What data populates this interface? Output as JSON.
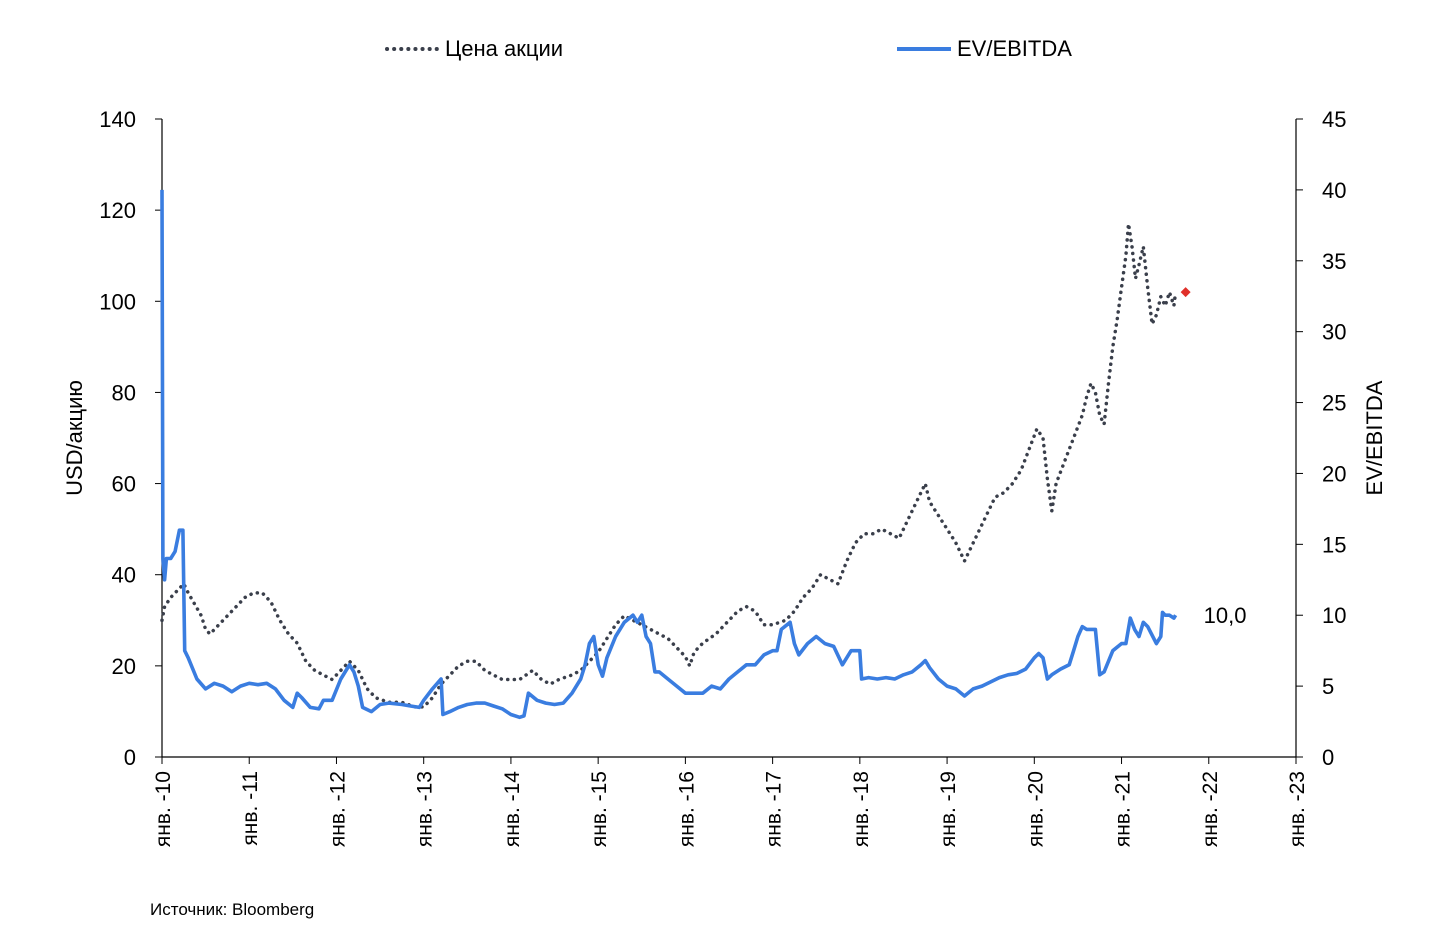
{
  "legend": {
    "price": "Цена акции",
    "ev": "EV/EBITDA"
  },
  "source": "Источник: Bloomberg",
  "last_value_label": "10,0",
  "colors": {
    "price": "#3a3f4b",
    "ev": "#3a7de0",
    "marker": "#e0302a"
  },
  "chart_data": {
    "type": "line",
    "y_left": {
      "label": "USD/акцию",
      "range": [
        0,
        140
      ],
      "ticks": [
        0,
        20,
        40,
        60,
        80,
        100,
        120,
        140
      ]
    },
    "y_right": {
      "label": "EV/EBITDA",
      "range": [
        0,
        45
      ],
      "ticks": [
        0,
        5,
        10,
        15,
        20,
        25,
        30,
        35,
        40,
        45
      ]
    },
    "x": {
      "range": [
        2010,
        2023
      ],
      "ticks": [
        {
          "v": 2010,
          "label": "янв. -10"
        },
        {
          "v": 2011,
          "label": "янв. -11"
        },
        {
          "v": 2012,
          "label": "янв. -12"
        },
        {
          "v": 2013,
          "label": "янв. -13"
        },
        {
          "v": 2014,
          "label": "янв. -14"
        },
        {
          "v": 2015,
          "label": "янв. -15"
        },
        {
          "v": 2016,
          "label": "янв. -16"
        },
        {
          "v": 2017,
          "label": "янв. -17"
        },
        {
          "v": 2018,
          "label": "янв. -18"
        },
        {
          "v": 2019,
          "label": "янв. -19"
        },
        {
          "v": 2020,
          "label": "янв. -20"
        },
        {
          "v": 2021,
          "label": "янв. -21"
        },
        {
          "v": 2022,
          "label": "янв. -22"
        },
        {
          "v": 2023,
          "label": "янв. -23"
        }
      ]
    },
    "series": [
      {
        "name": "Цена акции",
        "axis": "left",
        "style": "dotted",
        "points": [
          [
            2010.0,
            30
          ],
          [
            2010.03,
            33
          ],
          [
            2010.1,
            35
          ],
          [
            2010.2,
            37
          ],
          [
            2010.25,
            38
          ],
          [
            2010.3,
            36
          ],
          [
            2010.45,
            31
          ],
          [
            2010.5,
            28
          ],
          [
            2010.55,
            27
          ],
          [
            2010.7,
            30
          ],
          [
            2010.8,
            32
          ],
          [
            2010.95,
            35
          ],
          [
            2011.05,
            36
          ],
          [
            2011.15,
            36
          ],
          [
            2011.25,
            34
          ],
          [
            2011.35,
            30
          ],
          [
            2011.45,
            27
          ],
          [
            2011.55,
            25
          ],
          [
            2011.65,
            21
          ],
          [
            2011.75,
            19
          ],
          [
            2011.85,
            18
          ],
          [
            2011.95,
            17
          ],
          [
            2012.05,
            19
          ],
          [
            2012.15,
            21
          ],
          [
            2012.25,
            19
          ],
          [
            2012.35,
            15
          ],
          [
            2012.45,
            13
          ],
          [
            2012.6,
            12
          ],
          [
            2012.75,
            12
          ],
          [
            2012.9,
            11
          ],
          [
            2013.0,
            11
          ],
          [
            2013.1,
            13
          ],
          [
            2013.2,
            16
          ],
          [
            2013.3,
            18
          ],
          [
            2013.4,
            20
          ],
          [
            2013.5,
            21
          ],
          [
            2013.6,
            21
          ],
          [
            2013.7,
            19
          ],
          [
            2013.8,
            18
          ],
          [
            2013.9,
            17
          ],
          [
            2014.0,
            17
          ],
          [
            2014.1,
            17
          ],
          [
            2014.25,
            19
          ],
          [
            2014.35,
            17
          ],
          [
            2014.45,
            16
          ],
          [
            2014.55,
            17
          ],
          [
            2014.7,
            18
          ],
          [
            2014.8,
            19
          ],
          [
            2014.9,
            21
          ],
          [
            2015.0,
            23
          ],
          [
            2015.1,
            26
          ],
          [
            2015.2,
            29
          ],
          [
            2015.3,
            31
          ],
          [
            2015.4,
            30
          ],
          [
            2015.5,
            29
          ],
          [
            2015.6,
            28
          ],
          [
            2015.7,
            27
          ],
          [
            2015.8,
            26
          ],
          [
            2015.9,
            24
          ],
          [
            2016.0,
            22
          ],
          [
            2016.05,
            20
          ],
          [
            2016.1,
            23
          ],
          [
            2016.2,
            25
          ],
          [
            2016.35,
            27
          ],
          [
            2016.5,
            30
          ],
          [
            2016.6,
            32
          ],
          [
            2016.7,
            33
          ],
          [
            2016.8,
            32
          ],
          [
            2016.9,
            29
          ],
          [
            2017.0,
            29
          ],
          [
            2017.15,
            30
          ],
          [
            2017.25,
            32
          ],
          [
            2017.35,
            35
          ],
          [
            2017.45,
            37
          ],
          [
            2017.55,
            40
          ],
          [
            2017.65,
            39
          ],
          [
            2017.75,
            38
          ],
          [
            2017.85,
            43
          ],
          [
            2017.95,
            47
          ],
          [
            2018.05,
            49
          ],
          [
            2018.15,
            49
          ],
          [
            2018.25,
            50
          ],
          [
            2018.35,
            49
          ],
          [
            2018.45,
            48
          ],
          [
            2018.55,
            52
          ],
          [
            2018.65,
            56
          ],
          [
            2018.75,
            60
          ],
          [
            2018.8,
            56
          ],
          [
            2018.9,
            53
          ],
          [
            2019.0,
            50
          ],
          [
            2019.1,
            47
          ],
          [
            2019.2,
            43
          ],
          [
            2019.25,
            45
          ],
          [
            2019.35,
            49
          ],
          [
            2019.45,
            53
          ],
          [
            2019.55,
            57
          ],
          [
            2019.65,
            58
          ],
          [
            2019.75,
            60
          ],
          [
            2019.85,
            63
          ],
          [
            2019.95,
            68
          ],
          [
            2020.03,
            72
          ],
          [
            2020.1,
            70
          ],
          [
            2020.15,
            61
          ],
          [
            2020.2,
            54
          ],
          [
            2020.25,
            60
          ],
          [
            2020.35,
            65
          ],
          [
            2020.45,
            70
          ],
          [
            2020.55,
            75
          ],
          [
            2020.6,
            79
          ],
          [
            2020.65,
            82
          ],
          [
            2020.7,
            80
          ],
          [
            2020.75,
            75
          ],
          [
            2020.8,
            73
          ],
          [
            2020.85,
            82
          ],
          [
            2020.9,
            90
          ],
          [
            2020.95,
            96
          ],
          [
            2021.0,
            103
          ],
          [
            2021.05,
            110
          ],
          [
            2021.08,
            117
          ],
          [
            2021.12,
            112
          ],
          [
            2021.16,
            105
          ],
          [
            2021.2,
            108
          ],
          [
            2021.25,
            112
          ],
          [
            2021.3,
            103
          ],
          [
            2021.35,
            95
          ],
          [
            2021.4,
            97
          ],
          [
            2021.45,
            101
          ],
          [
            2021.5,
            99
          ],
          [
            2021.55,
            102
          ],
          [
            2021.6,
            99
          ],
          [
            2021.62,
            102
          ]
        ]
      },
      {
        "name": "EV/EBITDA",
        "axis": "right",
        "style": "solid",
        "points": [
          [
            2010.0,
            40
          ],
          [
            2010.01,
            14
          ],
          [
            2010.03,
            12.5
          ],
          [
            2010.05,
            14
          ],
          [
            2010.1,
            14
          ],
          [
            2010.15,
            14.5
          ],
          [
            2010.2,
            16
          ],
          [
            2010.24,
            16
          ],
          [
            2010.26,
            7.5
          ],
          [
            2010.3,
            7
          ],
          [
            2010.4,
            5.5
          ],
          [
            2010.5,
            4.8
          ],
          [
            2010.6,
            5.2
          ],
          [
            2010.7,
            5
          ],
          [
            2010.8,
            4.6
          ],
          [
            2010.9,
            5
          ],
          [
            2011.0,
            5.2
          ],
          [
            2011.1,
            5.1
          ],
          [
            2011.2,
            5.2
          ],
          [
            2011.3,
            4.8
          ],
          [
            2011.4,
            4
          ],
          [
            2011.5,
            3.5
          ],
          [
            2011.55,
            4.5
          ],
          [
            2011.6,
            4.2
          ],
          [
            2011.7,
            3.5
          ],
          [
            2011.8,
            3.4
          ],
          [
            2011.85,
            4
          ],
          [
            2011.95,
            4
          ],
          [
            2012.05,
            5.5
          ],
          [
            2012.15,
            6.5
          ],
          [
            2012.2,
            6
          ],
          [
            2012.25,
            5
          ],
          [
            2012.3,
            3.5
          ],
          [
            2012.4,
            3.2
          ],
          [
            2012.5,
            3.7
          ],
          [
            2012.6,
            3.8
          ],
          [
            2012.75,
            3.7
          ],
          [
            2012.85,
            3.6
          ],
          [
            2012.95,
            3.5
          ],
          [
            2013.0,
            4
          ],
          [
            2013.1,
            4.8
          ],
          [
            2013.2,
            5.5
          ],
          [
            2013.22,
            3
          ],
          [
            2013.3,
            3.2
          ],
          [
            2013.4,
            3.5
          ],
          [
            2013.5,
            3.7
          ],
          [
            2013.6,
            3.8
          ],
          [
            2013.7,
            3.8
          ],
          [
            2013.8,
            3.6
          ],
          [
            2013.9,
            3.4
          ],
          [
            2014.0,
            3
          ],
          [
            2014.1,
            2.8
          ],
          [
            2014.15,
            2.9
          ],
          [
            2014.2,
            4.5
          ],
          [
            2014.3,
            4
          ],
          [
            2014.4,
            3.8
          ],
          [
            2014.5,
            3.7
          ],
          [
            2014.6,
            3.8
          ],
          [
            2014.7,
            4.5
          ],
          [
            2014.8,
            5.5
          ],
          [
            2014.85,
            6.5
          ],
          [
            2014.9,
            8
          ],
          [
            2014.95,
            8.5
          ],
          [
            2015.0,
            6.5
          ],
          [
            2015.05,
            5.7
          ],
          [
            2015.1,
            7
          ],
          [
            2015.2,
            8.5
          ],
          [
            2015.3,
            9.5
          ],
          [
            2015.4,
            10
          ],
          [
            2015.45,
            9.5
          ],
          [
            2015.5,
            10
          ],
          [
            2015.55,
            8.5
          ],
          [
            2015.6,
            8
          ],
          [
            2015.65,
            6
          ],
          [
            2015.7,
            6
          ],
          [
            2015.8,
            5.5
          ],
          [
            2015.9,
            5
          ],
          [
            2016.0,
            4.5
          ],
          [
            2016.1,
            4.5
          ],
          [
            2016.2,
            4.5
          ],
          [
            2016.3,
            5
          ],
          [
            2016.4,
            4.8
          ],
          [
            2016.5,
            5.5
          ],
          [
            2016.6,
            6
          ],
          [
            2016.7,
            6.5
          ],
          [
            2016.8,
            6.5
          ],
          [
            2016.9,
            7.2
          ],
          [
            2017.0,
            7.5
          ],
          [
            2017.05,
            7.5
          ],
          [
            2017.1,
            9
          ],
          [
            2017.2,
            9.5
          ],
          [
            2017.25,
            8
          ],
          [
            2017.3,
            7.2
          ],
          [
            2017.4,
            8
          ],
          [
            2017.5,
            8.5
          ],
          [
            2017.6,
            8
          ],
          [
            2017.7,
            7.8
          ],
          [
            2017.8,
            6.5
          ],
          [
            2017.9,
            7.5
          ],
          [
            2018.0,
            7.5
          ],
          [
            2018.02,
            5.5
          ],
          [
            2018.1,
            5.6
          ],
          [
            2018.2,
            5.5
          ],
          [
            2018.3,
            5.6
          ],
          [
            2018.4,
            5.5
          ],
          [
            2018.5,
            5.8
          ],
          [
            2018.6,
            6
          ],
          [
            2018.7,
            6.5
          ],
          [
            2018.75,
            6.8
          ],
          [
            2018.8,
            6.3
          ],
          [
            2018.9,
            5.5
          ],
          [
            2019.0,
            5
          ],
          [
            2019.1,
            4.8
          ],
          [
            2019.2,
            4.3
          ],
          [
            2019.3,
            4.8
          ],
          [
            2019.4,
            5
          ],
          [
            2019.5,
            5.3
          ],
          [
            2019.6,
            5.6
          ],
          [
            2019.7,
            5.8
          ],
          [
            2019.8,
            5.9
          ],
          [
            2019.9,
            6.2
          ],
          [
            2020.0,
            7
          ],
          [
            2020.05,
            7.3
          ],
          [
            2020.1,
            7
          ],
          [
            2020.15,
            5.5
          ],
          [
            2020.2,
            5.8
          ],
          [
            2020.3,
            6.2
          ],
          [
            2020.4,
            6.5
          ],
          [
            2020.45,
            7.5
          ],
          [
            2020.5,
            8.5
          ],
          [
            2020.55,
            9.2
          ],
          [
            2020.6,
            9
          ],
          [
            2020.7,
            9
          ],
          [
            2020.75,
            5.8
          ],
          [
            2020.8,
            6
          ],
          [
            2020.9,
            7.5
          ],
          [
            2021.0,
            8
          ],
          [
            2021.05,
            8
          ],
          [
            2021.1,
            9.8
          ],
          [
            2021.15,
            9
          ],
          [
            2021.2,
            8.5
          ],
          [
            2021.25,
            9.5
          ],
          [
            2021.3,
            9.2
          ],
          [
            2021.4,
            8
          ],
          [
            2021.45,
            8.5
          ],
          [
            2021.47,
            10.2
          ],
          [
            2021.5,
            10
          ],
          [
            2021.55,
            10
          ],
          [
            2021.6,
            9.8
          ],
          [
            2021.62,
            10
          ]
        ]
      }
    ]
  }
}
